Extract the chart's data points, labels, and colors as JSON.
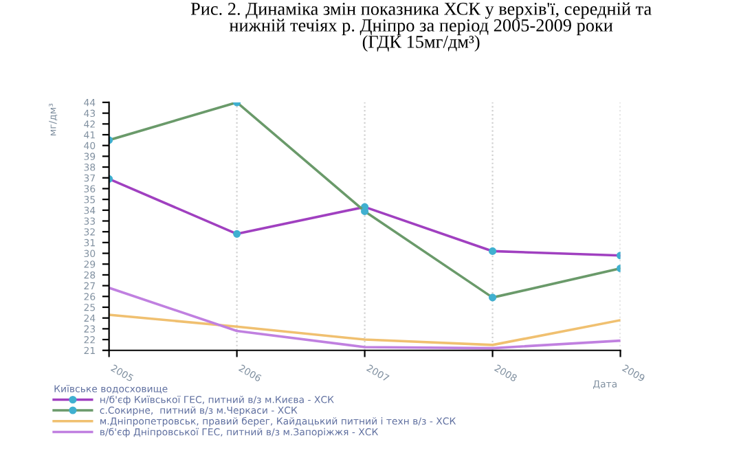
{
  "chart_data": {
    "type": "line",
    "title": "Рис. 2. Динаміка змін показника ХСК у верхів'ї, середній та\nнижній течіях р. Дніпро за період 2005-2009 роки\n(ГДК 15мг/дм³)",
    "xlabel": "Дата",
    "ylabel": "мг/дм³",
    "legend_title": "Київське водосховище",
    "categories": [
      "2005",
      "2006",
      "2007",
      "2008",
      "2009"
    ],
    "series": [
      {
        "name": "н/б'єф Київської ГЕС, питний в/з м.Києва - ХСК",
        "color": "#a040c0",
        "marker": "circle",
        "values": [
          36.9,
          31.8,
          34.3,
          30.2,
          29.8
        ]
      },
      {
        "name": "с.Сокирне,  питний в/з м.Черкаси - ХСК",
        "color": "#6a9a6a",
        "marker": "circle",
        "values": [
          40.5,
          44,
          33.9,
          25.9,
          28.6
        ]
      },
      {
        "name": "м.Дніпропетровськ, правий берег, Кайдацький питний і техн в/з - ХСК",
        "color": "#f0c070",
        "marker": "none",
        "values": [
          24.3,
          23.2,
          22.0,
          21.5,
          23.8
        ]
      },
      {
        "name": "в/б'єф Дніпровської ГЕС, питний в/з м.Запоріжжя - ХСК",
        "color": "#c080e0",
        "marker": "none",
        "values": [
          26.8,
          22.8,
          21.3,
          21.2,
          21.9
        ]
      }
    ],
    "ylim": [
      21,
      44
    ],
    "yticks": [
      21,
      22,
      23,
      24,
      25,
      26,
      27,
      28,
      29,
      30,
      31,
      32,
      33,
      34,
      35,
      36,
      37,
      38,
      39,
      40,
      41,
      42,
      43,
      44
    ],
    "grid": "x",
    "legend": "bottom left",
    "line_style": "solid"
  }
}
